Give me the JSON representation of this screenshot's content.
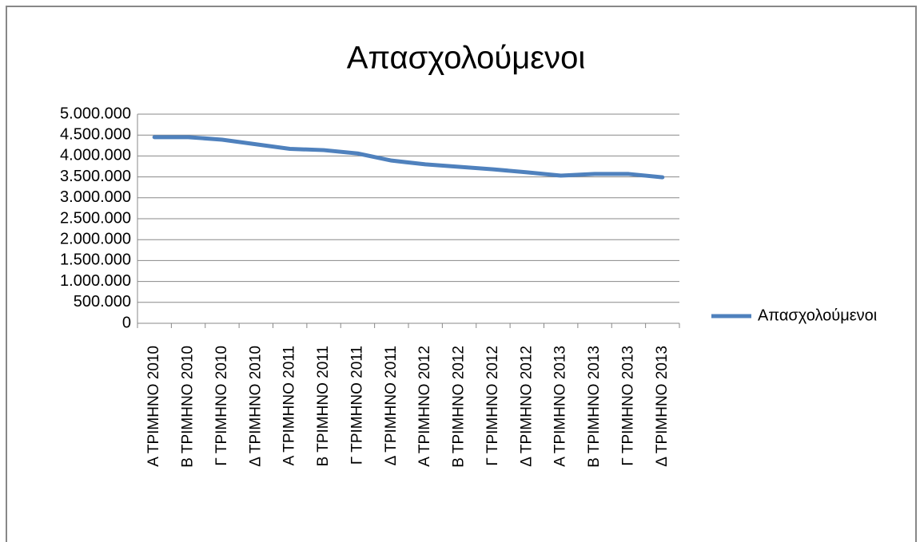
{
  "chart_data": {
    "type": "line",
    "title": "Απασχολούμενοι",
    "categories": [
      "Α ΤΡΙΜΗΝΟ 2010",
      "Β ΤΡΙΜΗΝΟ 2010",
      "Γ ΤΡΙΜΗΝΟ 2010",
      "Δ ΤΡΙΜΗΝΟ 2010",
      "Α ΤΡΙΜΗΝΟ 2011",
      "Β ΤΡΙΜΗΝΟ 2011",
      "Γ ΤΡΙΜΗΝΟ 2011",
      "Δ ΤΡΙΜΗΝΟ 2011",
      "Α ΤΡΙΜΗΝΟ 2012",
      "Β ΤΡΙΜΗΝΟ 2012",
      "Γ ΤΡΙΜΗΝΟ 2012",
      "Δ ΤΡΙΜΗΝΟ 2012",
      "Α ΤΡΙΜΗΝΟ 2013",
      "Β ΤΡΙΜΗΝΟ 2013",
      "Γ ΤΡΙΜΗΝΟ 2013",
      "Δ ΤΡΙΜΗΝΟ 2013"
    ],
    "series": [
      {
        "name": "Απασχολούμενοι",
        "color": "#4f81bd",
        "values": [
          4450000,
          4450000,
          4390000,
          4280000,
          4170000,
          4140000,
          4060000,
          3890000,
          3800000,
          3740000,
          3680000,
          3610000,
          3530000,
          3570000,
          3570000,
          3490000
        ]
      }
    ],
    "ylim": [
      0,
      5000000
    ],
    "yticks": [
      0,
      {
        "value": 500000,
        "label": "500.000"
      },
      {
        "value": 1000000,
        "label": "1.000.000"
      },
      {
        "value": 1500000,
        "label": "1.500.000"
      },
      {
        "value": 2000000,
        "label": "2.000.000"
      },
      {
        "value": 2500000,
        "label": "2.500.000"
      },
      {
        "value": 3000000,
        "label": "3.000.000"
      },
      {
        "value": 3500000,
        "label": "3.500.000"
      },
      {
        "value": 4000000,
        "label": "4.000.000"
      },
      {
        "value": 4500000,
        "label": "4.500.000"
      },
      {
        "value": 5000000,
        "label": "5.000.000"
      }
    ],
    "grid": true,
    "legend": "right"
  }
}
